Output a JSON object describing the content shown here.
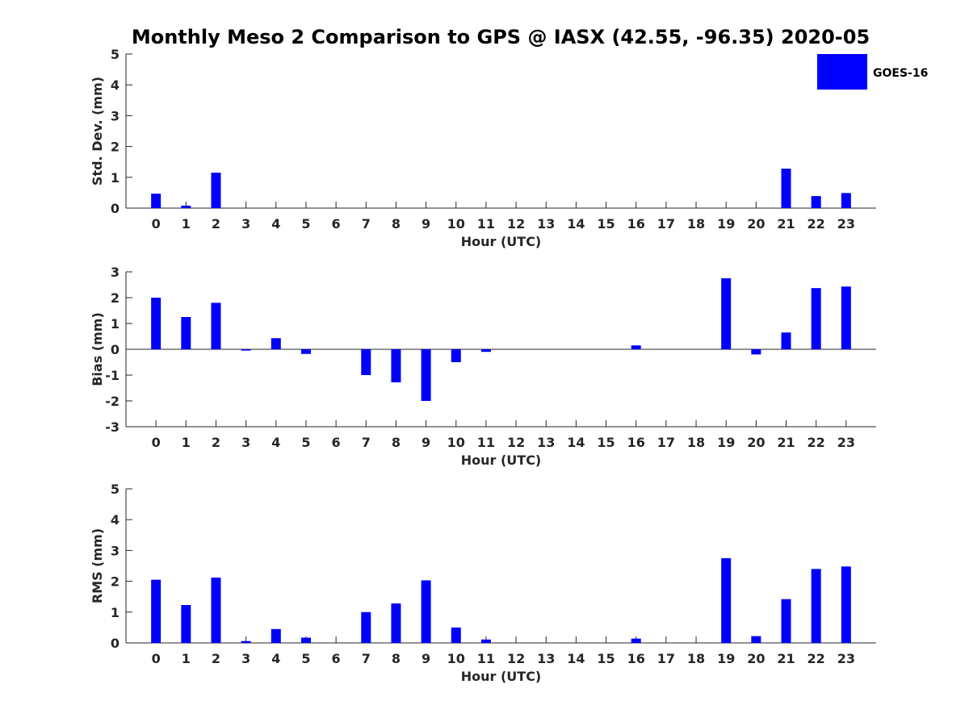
{
  "title": "Monthly Meso 2 Comparison to GPS @ IASX (42.55, -96.35) 2020-05",
  "legend": {
    "label": "GOES-16",
    "color": "#0000ff"
  },
  "bar_color": "#0000ff",
  "chart_data": [
    {
      "type": "bar",
      "xlabel": "Hour (UTC)",
      "ylabel": "Std. Dev. (mm)",
      "ylim": [
        0,
        5
      ],
      "yticks": [
        0,
        1,
        2,
        3,
        4,
        5
      ],
      "categories": [
        "0",
        "1",
        "2",
        "3",
        "4",
        "5",
        "6",
        "7",
        "8",
        "9",
        "10",
        "11",
        "12",
        "13",
        "14",
        "15",
        "16",
        "17",
        "18",
        "19",
        "20",
        "21",
        "22",
        "23"
      ],
      "series": [
        {
          "name": "GOES-16",
          "values": [
            0.47,
            0.08,
            1.15,
            0,
            0,
            0,
            0,
            0,
            0,
            0,
            0,
            0,
            0,
            0,
            0,
            0,
            0,
            0,
            0,
            0,
            0,
            1.28,
            0.39,
            0.49
          ]
        }
      ],
      "grid": false,
      "legend_position": "top-right"
    },
    {
      "type": "bar",
      "xlabel": "Hour (UTC)",
      "ylabel": "Bias (mm)",
      "ylim": [
        -3,
        3
      ],
      "yticks": [
        -3,
        -2,
        -1,
        0,
        1,
        2,
        3
      ],
      "categories": [
        "0",
        "1",
        "2",
        "3",
        "4",
        "5",
        "6",
        "7",
        "8",
        "9",
        "10",
        "11",
        "12",
        "13",
        "14",
        "15",
        "16",
        "17",
        "18",
        "19",
        "20",
        "21",
        "22",
        "23"
      ],
      "series": [
        {
          "name": "GOES-16",
          "values": [
            2.0,
            1.25,
            1.8,
            -0.05,
            0.43,
            -0.18,
            0,
            -1.0,
            -1.28,
            -2.0,
            -0.5,
            -0.1,
            0,
            0,
            0,
            0,
            0.15,
            0,
            0,
            2.75,
            -0.2,
            0.65,
            2.37,
            2.43
          ]
        }
      ],
      "grid": false
    },
    {
      "type": "bar",
      "xlabel": "Hour (UTC)",
      "ylabel": "RMS (mm)",
      "ylim": [
        0,
        5
      ],
      "yticks": [
        0,
        1,
        2,
        3,
        4,
        5
      ],
      "categories": [
        "0",
        "1",
        "2",
        "3",
        "4",
        "5",
        "6",
        "7",
        "8",
        "9",
        "10",
        "11",
        "12",
        "13",
        "14",
        "15",
        "16",
        "17",
        "18",
        "19",
        "20",
        "21",
        "22",
        "23"
      ],
      "series": [
        {
          "name": "GOES-16",
          "values": [
            2.05,
            1.23,
            2.12,
            0.06,
            0.45,
            0.17,
            0,
            1.0,
            1.28,
            2.03,
            0.5,
            0.11,
            0,
            0,
            0,
            0,
            0.14,
            0,
            0,
            2.75,
            0.22,
            1.42,
            2.4,
            2.48
          ]
        }
      ],
      "grid": false
    }
  ]
}
